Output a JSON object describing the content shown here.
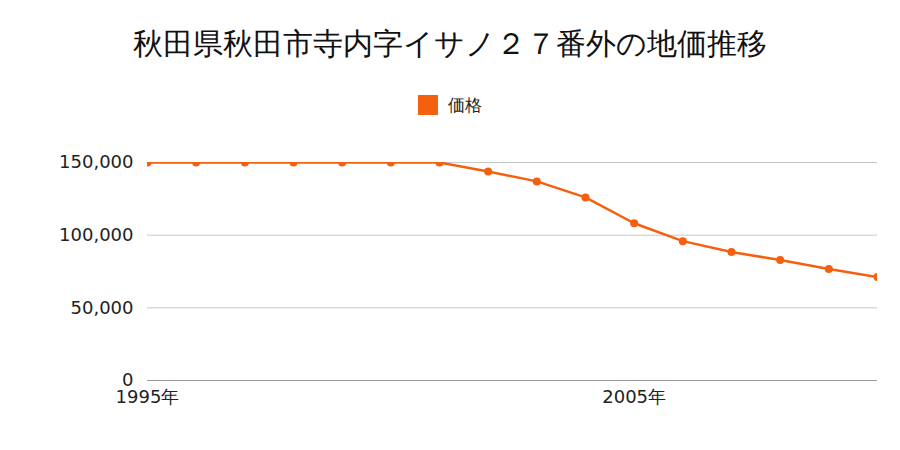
{
  "chart_data": {
    "type": "line",
    "title": "秋田県秋田市寺内字イサノ２７番外の地価推移",
    "x": [
      1995,
      1996,
      1997,
      1998,
      1999,
      2000,
      2001,
      2002,
      2003,
      2004,
      2005,
      2006,
      2007,
      2008,
      2009,
      2010
    ],
    "series": [
      {
        "name": "価格",
        "color": "#f5600f",
        "marker": "circle",
        "values": [
          150000,
          150000,
          150000,
          150000,
          150000,
          150000,
          150000,
          143800,
          137000,
          126000,
          108200,
          95900,
          88400,
          82900,
          76700,
          71200
        ]
      }
    ],
    "xlim": [
      1995,
      2010
    ],
    "xticks": [
      {
        "value": 1995,
        "label": "1995年"
      },
      {
        "value": 2005,
        "label": "2005年"
      }
    ],
    "ylim": [
      0,
      150000
    ],
    "yticks": [
      0,
      {
        "value": 50000,
        "label": "50,000"
      },
      {
        "value": 100000,
        "label": "100,000"
      },
      {
        "value": 150000,
        "label": "150,000"
      }
    ],
    "grid": true,
    "legend": "top"
  }
}
